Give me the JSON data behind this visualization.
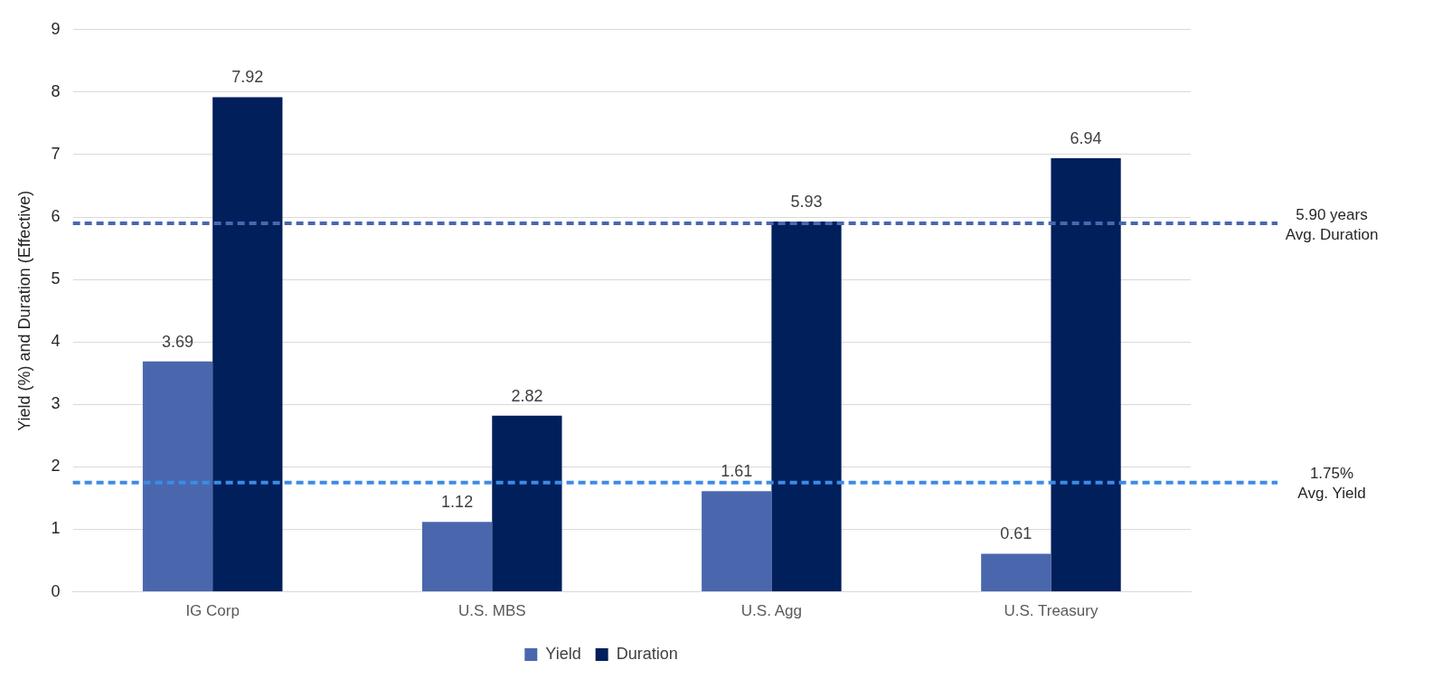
{
  "chart_data": {
    "type": "bar",
    "ylabel": "Yield (%) and Duration (Effective)",
    "categories": [
      "IG Corp",
      "U.S. MBS",
      "U.S. Agg",
      "U.S. Treasury"
    ],
    "series": [
      {
        "name": "Yield",
        "color": "#4a67ae",
        "values": [
          3.69,
          1.12,
          1.61,
          0.61
        ]
      },
      {
        "name": "Duration",
        "color": "#001f5b",
        "values": [
          7.92,
          2.82,
          5.93,
          6.94
        ]
      }
    ],
    "ylim": [
      0,
      9
    ],
    "yticks": [
      0,
      1,
      2,
      3,
      4,
      5,
      6,
      7,
      8,
      9
    ],
    "ref_lines": [
      {
        "axis": "y",
        "value": 5.9,
        "label": "5.90 years\nAvg. Duration",
        "color": "#4a67ae",
        "line_style": "dashed"
      },
      {
        "axis": "y",
        "value": 1.75,
        "label": "1.75%\nAvg. Yield",
        "color": "#3c8be6",
        "line_style": "dashed"
      }
    ],
    "data_labels": true,
    "grid": "y",
    "legend": "bottom"
  }
}
